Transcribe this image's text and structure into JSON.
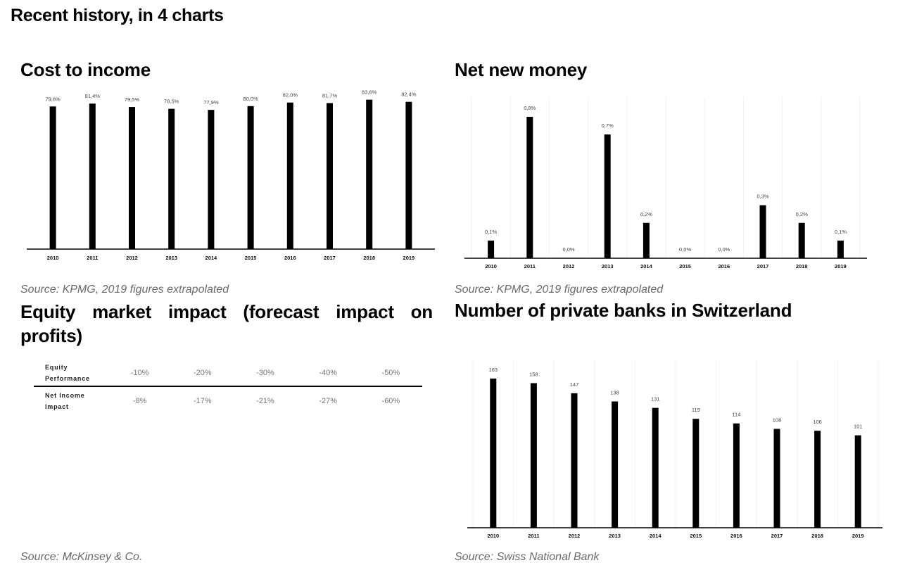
{
  "page": {
    "title": "Recent history, in 4 charts"
  },
  "chart_data": [
    {
      "id": "cost-to-income",
      "type": "bar",
      "title": "Cost to income",
      "source": "Source: KPMG, 2019 figures extrapolated",
      "categories": [
        "2010",
        "2011",
        "2012",
        "2013",
        "2014",
        "2015",
        "2016",
        "2017",
        "2018",
        "2019"
      ],
      "values": [
        79.8,
        81.4,
        79.5,
        78.5,
        77.9,
        80.0,
        82.0,
        81.7,
        83.6,
        82.4
      ],
      "value_labels": [
        "79,8%",
        "81,4%",
        "79,5%",
        "78,5%",
        "77,9%",
        "80,0%",
        "82,0%",
        "81,7%",
        "83,6%",
        "82,4%"
      ],
      "ylim": [
        0,
        100
      ],
      "grid": false,
      "color": "#000000"
    },
    {
      "id": "net-new-money",
      "type": "bar",
      "title": "Net new money",
      "source": "Source: KPMG, 2019 figures extrapolated",
      "categories": [
        "2010",
        "2011",
        "2012",
        "2013",
        "2014",
        "2015",
        "2016",
        "2017",
        "2018",
        "2019"
      ],
      "values": [
        0.1,
        0.8,
        0.0,
        0.7,
        0.2,
        0.0,
        0.0,
        0.3,
        0.2,
        0.1
      ],
      "value_labels": [
        "0,1%",
        "0,8%",
        "0,0%",
        "0,7%",
        "0,2%",
        "0,0%",
        "0,0%",
        "0,3%",
        "0,2%",
        "0,1%"
      ],
      "ylim": [
        0,
        0.8
      ],
      "grid": true,
      "color": "#000000"
    },
    {
      "id": "equity-market-impact",
      "type": "table",
      "title": "Equity market impact (forecast impact on profits)",
      "source": "Source: McKinsey & Co.",
      "rows": [
        {
          "header_lines": [
            "Equity",
            "Performance"
          ],
          "values": [
            "-10%",
            "-20%",
            "-30%",
            "-40%",
            "-50%"
          ]
        },
        {
          "header_lines": [
            "Net Income",
            "Impact"
          ],
          "values": [
            "-8%",
            "-17%",
            "-21%",
            "-27%",
            "-60%"
          ]
        }
      ]
    },
    {
      "id": "private-banks",
      "type": "bar",
      "title": "Number of private banks in Switzerland",
      "source": "Source: Swiss National Bank",
      "categories": [
        "2010",
        "2011",
        "2012",
        "2013",
        "2014",
        "2015",
        "2016",
        "2017",
        "2018",
        "2019"
      ],
      "values": [
        163,
        158,
        147,
        138,
        131,
        119,
        114,
        108,
        106,
        101
      ],
      "value_labels": [
        "163",
        "158",
        "147",
        "138",
        "131",
        "119",
        "114",
        "108",
        "106",
        "101"
      ],
      "ylim": [
        0,
        163
      ],
      "grid": true,
      "color": "#000000"
    }
  ]
}
